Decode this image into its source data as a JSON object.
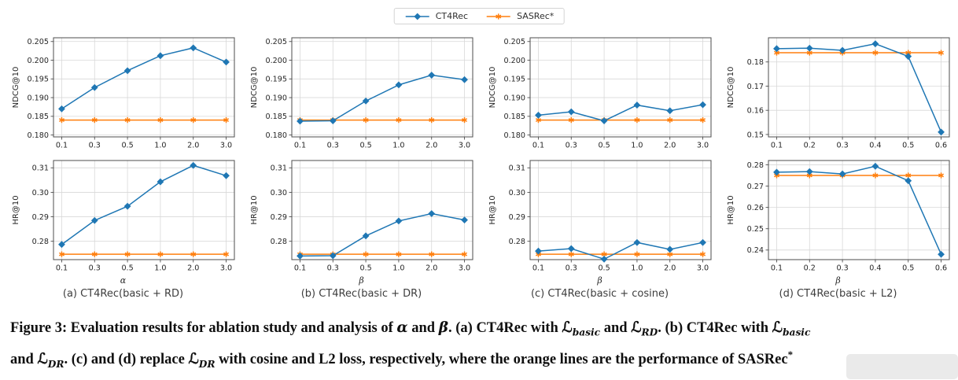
{
  "colors": {
    "ct4rec_blue": "#1f77b4",
    "sasrec_orange": "#ff7f0e",
    "grid": "#d8d8d8",
    "spine": "#4d4d4d",
    "text": "#262626"
  },
  "legend": {
    "items": [
      {
        "label": "CT4Rec",
        "color": "#1f77b4",
        "marker": "diamond"
      },
      {
        "label": "SASRec*",
        "color": "#ff7f0e",
        "marker": "star"
      }
    ]
  },
  "panels": [
    {
      "caption": "(a) CT4Rec(basic + RD)"
    },
    {
      "caption": "(b) CT4Rec(basic + DR)"
    },
    {
      "caption": "(c) CT4Rec(basic + cosine)"
    },
    {
      "caption": "(d) CT4Rec(basic + L2)"
    }
  ],
  "chart_data": [
    {
      "type": "line",
      "panel": "a",
      "row": "top",
      "x_categories": [
        "0.1",
        "0.3",
        "0.5",
        "1.0",
        "2.0",
        "3.0"
      ],
      "xlabel": "",
      "ylabel": "NDCG@10",
      "yticks": [
        "0.180",
        "0.185",
        "0.190",
        "0.195",
        "0.200",
        "0.205"
      ],
      "ylim": [
        0.1795,
        0.206
      ],
      "series": [
        {
          "name": "CT4Rec",
          "color": "#1f77b4",
          "marker": "diamond",
          "values": [
            0.187,
            0.1927,
            0.1972,
            0.2012,
            0.2033,
            0.1995
          ]
        },
        {
          "name": "SASRec*",
          "color": "#ff7f0e",
          "marker": "star",
          "values": [
            0.184,
            0.184,
            0.184,
            0.184,
            0.184,
            0.184
          ]
        }
      ]
    },
    {
      "type": "line",
      "panel": "b",
      "row": "top",
      "x_categories": [
        "0.1",
        "0.3",
        "0.5",
        "1.0",
        "2.0",
        "3.0"
      ],
      "xlabel": "",
      "ylabel": "NDCG@10",
      "yticks": [
        "0.180",
        "0.185",
        "0.190",
        "0.195",
        "0.200",
        "0.205"
      ],
      "ylim": [
        0.1795,
        0.206
      ],
      "series": [
        {
          "name": "CT4Rec",
          "color": "#1f77b4",
          "marker": "diamond",
          "values": [
            0.1837,
            0.1838,
            0.1891,
            0.1934,
            0.196,
            0.1948
          ]
        },
        {
          "name": "SASRec*",
          "color": "#ff7f0e",
          "marker": "star",
          "values": [
            0.184,
            0.184,
            0.184,
            0.184,
            0.184,
            0.184
          ]
        }
      ]
    },
    {
      "type": "line",
      "panel": "c",
      "row": "top",
      "x_categories": [
        "0.1",
        "0.3",
        "0.5",
        "1.0",
        "2.0",
        "3.0"
      ],
      "xlabel": "",
      "ylabel": "NDCG@10",
      "yticks": [
        "0.180",
        "0.185",
        "0.190",
        "0.195",
        "0.200",
        "0.205"
      ],
      "ylim": [
        0.1795,
        0.206
      ],
      "series": [
        {
          "name": "CT4Rec",
          "color": "#1f77b4",
          "marker": "diamond",
          "values": [
            0.1853,
            0.1862,
            0.1838,
            0.188,
            0.1865,
            0.1881
          ]
        },
        {
          "name": "SASRec*",
          "color": "#ff7f0e",
          "marker": "star",
          "values": [
            0.184,
            0.184,
            0.184,
            0.184,
            0.184,
            0.184
          ]
        }
      ]
    },
    {
      "type": "line",
      "panel": "d",
      "row": "top",
      "x_categories": [
        "0.1",
        "0.2",
        "0.3",
        "0.4",
        "0.5",
        "0.6"
      ],
      "xlabel": "",
      "ylabel": "NDCG@10",
      "yticks": [
        "0.15",
        "0.16",
        "0.17",
        "0.18"
      ],
      "ylim": [
        0.149,
        0.19
      ],
      "series": [
        {
          "name": "CT4Rec",
          "color": "#1f77b4",
          "marker": "diamond",
          "values": [
            0.1855,
            0.1857,
            0.1848,
            0.1875,
            0.1823,
            0.151
          ]
        },
        {
          "name": "SASRec*",
          "color": "#ff7f0e",
          "marker": "star",
          "values": [
            0.1838,
            0.1838,
            0.1838,
            0.1838,
            0.1838,
            0.1838
          ]
        }
      ]
    },
    {
      "type": "line",
      "panel": "a",
      "row": "bottom",
      "x_categories": [
        "0.1",
        "0.3",
        "0.5",
        "1.0",
        "2.0",
        "3.0"
      ],
      "xlabel": "α",
      "ylabel": "HR@10",
      "yticks": [
        "0.28",
        "0.29",
        "0.30",
        "0.31"
      ],
      "ylim": [
        0.2725,
        0.313
      ],
      "series": [
        {
          "name": "CT4Rec",
          "color": "#1f77b4",
          "marker": "diamond",
          "values": [
            0.2787,
            0.2885,
            0.2943,
            0.3043,
            0.311,
            0.3068
          ]
        },
        {
          "name": "SASRec*",
          "color": "#ff7f0e",
          "marker": "star",
          "values": [
            0.2747,
            0.2747,
            0.2747,
            0.2747,
            0.2747,
            0.2747
          ]
        }
      ]
    },
    {
      "type": "line",
      "panel": "b",
      "row": "bottom",
      "x_categories": [
        "0.1",
        "0.3",
        "0.5",
        "1.0",
        "2.0",
        "3.0"
      ],
      "xlabel": "β",
      "ylabel": "HR@10",
      "yticks": [
        "0.28",
        "0.29",
        "0.30",
        "0.31"
      ],
      "ylim": [
        0.2725,
        0.313
      ],
      "series": [
        {
          "name": "CT4Rec",
          "color": "#1f77b4",
          "marker": "diamond",
          "values": [
            0.274,
            0.2741,
            0.2822,
            0.2883,
            0.2913,
            0.2887
          ]
        },
        {
          "name": "SASRec*",
          "color": "#ff7f0e",
          "marker": "star",
          "values": [
            0.2747,
            0.2747,
            0.2747,
            0.2747,
            0.2747,
            0.2747
          ]
        }
      ]
    },
    {
      "type": "line",
      "panel": "c",
      "row": "bottom",
      "x_categories": [
        "0.1",
        "0.3",
        "0.5",
        "1.0",
        "2.0",
        "3.0"
      ],
      "xlabel": "β",
      "ylabel": "HR@10",
      "yticks": [
        "0.28",
        "0.29",
        "0.30",
        "0.31"
      ],
      "ylim": [
        0.2725,
        0.313
      ],
      "series": [
        {
          "name": "CT4Rec",
          "color": "#1f77b4",
          "marker": "diamond",
          "values": [
            0.276,
            0.277,
            0.2727,
            0.2795,
            0.2767,
            0.2795
          ]
        },
        {
          "name": "SASRec*",
          "color": "#ff7f0e",
          "marker": "star",
          "values": [
            0.2747,
            0.2747,
            0.2747,
            0.2747,
            0.2747,
            0.2747
          ]
        }
      ]
    },
    {
      "type": "line",
      "panel": "d",
      "row": "bottom",
      "x_categories": [
        "0.1",
        "0.2",
        "0.3",
        "0.4",
        "0.5",
        "0.6"
      ],
      "xlabel": "β",
      "ylabel": "HR@10",
      "yticks": [
        "0.24",
        "0.25",
        "0.26",
        "0.27",
        "0.28"
      ],
      "ylim": [
        0.2355,
        0.282
      ],
      "series": [
        {
          "name": "CT4Rec",
          "color": "#1f77b4",
          "marker": "diamond",
          "values": [
            0.2765,
            0.2768,
            0.2757,
            0.2793,
            0.2725,
            0.238
          ]
        },
        {
          "name": "SASRec*",
          "color": "#ff7f0e",
          "marker": "star",
          "values": [
            0.275,
            0.275,
            0.275,
            0.275,
            0.275,
            0.275
          ]
        }
      ]
    }
  ],
  "figure_caption": {
    "lines": [
      {
        "segments": [
          {
            "t": "Figure 3: Evaluation results for ablation study and analysis of "
          },
          {
            "m": "α"
          },
          {
            "t": " and "
          },
          {
            "m": "β"
          },
          {
            "t": ". (a) CT4Rec with "
          },
          {
            "scr": "basic"
          },
          {
            "t": " and "
          },
          {
            "scr": "RD"
          },
          {
            "t": ". (b) CT4Rec with "
          },
          {
            "scr": "basic"
          }
        ]
      },
      {
        "segments": [
          {
            "t": "and "
          },
          {
            "scr": "DR"
          },
          {
            "t": ". (c) and (d) replace "
          },
          {
            "scr": "DR"
          },
          {
            "t": " with cosine and L2 loss, respectively, where the orange lines are the performance of SASRec"
          },
          {
            "sup": "*"
          }
        ]
      }
    ]
  }
}
